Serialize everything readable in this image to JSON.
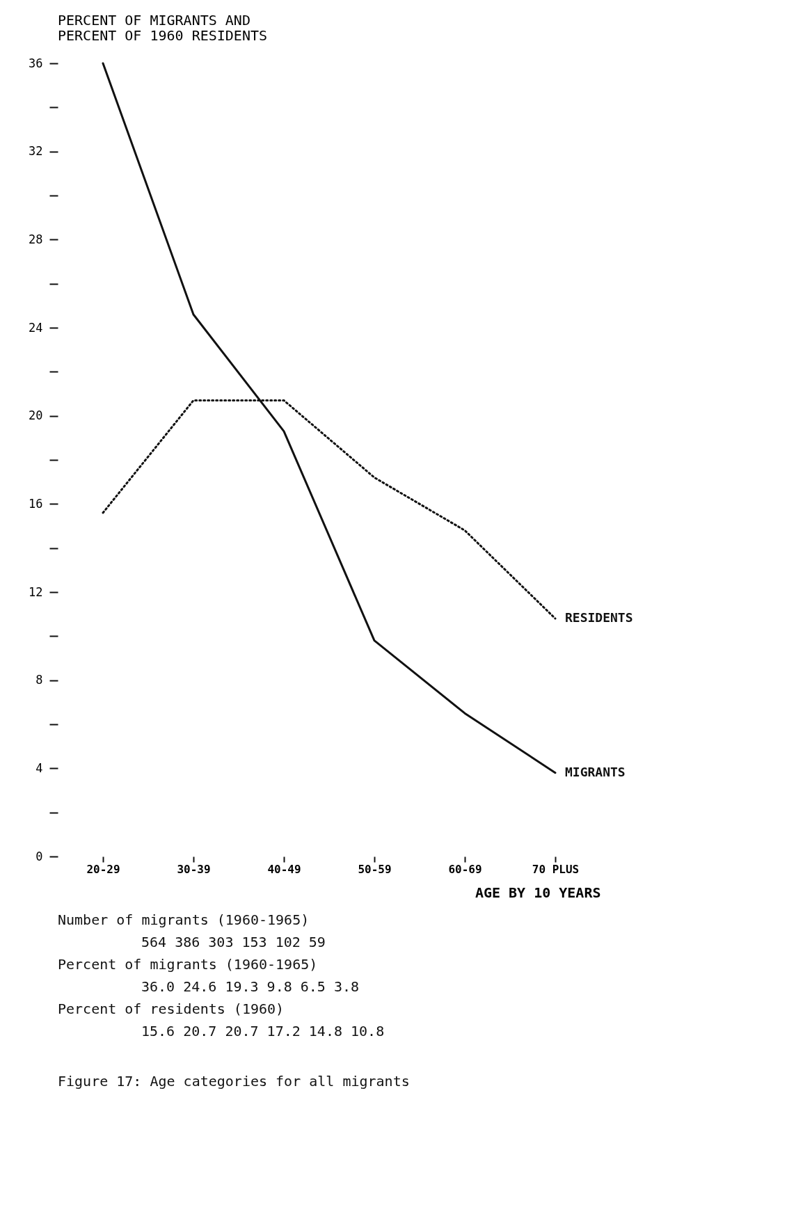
{
  "chart_data": {
    "type": "line",
    "ylabel": "PERCENT OF MIGRANTS AND\nPERCENT OF 1960 RESIDENTS",
    "xlabel": "AGE BY 10 YEARS",
    "categories": [
      "20-29",
      "30-39",
      "40-49",
      "50-59",
      "60-69",
      "70 PLUS"
    ],
    "series": [
      {
        "name": "MIGRANTS",
        "color": "#111111",
        "line_style": "solid",
        "values": [
          36.0,
          24.6,
          19.3,
          9.8,
          6.5,
          3.8
        ]
      },
      {
        "name": "RESIDENTS",
        "color": "#111111",
        "line_style": "dotted",
        "values": [
          15.6,
          20.7,
          20.7,
          17.2,
          14.8,
          10.8
        ]
      }
    ],
    "ylim": [
      0,
      36
    ],
    "yticks": [
      0,
      {
        "value": 2,
        "label": null
      },
      4,
      {
        "value": 6,
        "label": null
      },
      8,
      {
        "value": 10,
        "label": null
      },
      12,
      {
        "value": 14,
        "label": null
      },
      16,
      {
        "value": 18,
        "label": null
      },
      20,
      {
        "value": 22,
        "label": null
      },
      24,
      {
        "value": 26,
        "label": null
      },
      28,
      {
        "value": 30,
        "label": null
      },
      32,
      {
        "value": 34,
        "label": null
      },
      36
    ],
    "grid": false,
    "marker": "none",
    "annotations": [
      "Number of migrants (1960-1965)",
      "564   386   303   153   102   59",
      "Percent of migrants (1960-1965)",
      "36.0   24.6   19.3   9.8   6.5   3.8",
      "Percent of residents (1960)",
      "15.6   20.7   20.7   17.2   14.8   10.8",
      "Figure 17:  Age categories for all migrants"
    ]
  }
}
